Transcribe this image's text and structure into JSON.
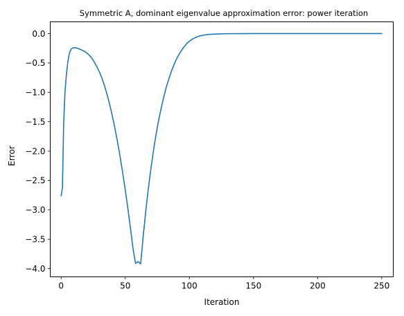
{
  "chart_data": {
    "type": "line",
    "title": "Symmetric A, dominant eigenvalue approximation error: power iteration",
    "xlabel": "Iteration",
    "ylabel": "Error",
    "xlim": [
      -8.5,
      259
    ],
    "ylim": [
      -4.14,
      0.2
    ],
    "grid": false,
    "xticks": [
      0,
      50,
      100,
      150,
      200,
      250
    ],
    "xtick_labels": [
      "0",
      "50",
      "100",
      "150",
      "200",
      "250"
    ],
    "yticks": [
      0.0,
      -0.5,
      -1.0,
      -1.5,
      -2.0,
      -2.5,
      -3.0,
      -3.5,
      -4.0
    ],
    "ytick_labels": [
      "0.0",
      "−0.5",
      "−1.0",
      "−1.5",
      "−2.0",
      "−2.5",
      "−3.0",
      "−3.5",
      "−4.0"
    ],
    "series": [
      {
        "color": "#1f77b4",
        "x": [
          0,
          1,
          2,
          3,
          4,
          5,
          6,
          7,
          8,
          9,
          10,
          12,
          14,
          16,
          18,
          20,
          22,
          24,
          26,
          28,
          30,
          32,
          34,
          36,
          38,
          40,
          42,
          44,
          46,
          48,
          50,
          52,
          54,
          56,
          58,
          60,
          62,
          64,
          66,
          68,
          70,
          72,
          74,
          76,
          78,
          80,
          82,
          84,
          86,
          88,
          90,
          92,
          94,
          96,
          98,
          100,
          103,
          106,
          110,
          115,
          120,
          125,
          130,
          140,
          150,
          160,
          175,
          200,
          225,
          250
        ],
        "y": [
          -2.76,
          -2.62,
          -1.5,
          -1.0,
          -0.72,
          -0.52,
          -0.38,
          -0.3,
          -0.26,
          -0.245,
          -0.24,
          -0.245,
          -0.26,
          -0.28,
          -0.3,
          -0.33,
          -0.37,
          -0.42,
          -0.49,
          -0.57,
          -0.66,
          -0.77,
          -0.9,
          -1.05,
          -1.22,
          -1.41,
          -1.62,
          -1.85,
          -2.1,
          -2.37,
          -2.66,
          -2.97,
          -3.3,
          -3.65,
          -3.91,
          -3.88,
          -3.92,
          -3.45,
          -3.02,
          -2.64,
          -2.3,
          -1.99,
          -1.72,
          -1.48,
          -1.27,
          -1.08,
          -0.91,
          -0.77,
          -0.64,
          -0.53,
          -0.43,
          -0.35,
          -0.28,
          -0.22,
          -0.17,
          -0.13,
          -0.085,
          -0.055,
          -0.03,
          -0.015,
          -0.008,
          -0.004,
          -0.002,
          -0.001,
          0.0,
          0.0,
          0.0,
          0.0,
          0.0,
          0.0
        ]
      }
    ]
  }
}
